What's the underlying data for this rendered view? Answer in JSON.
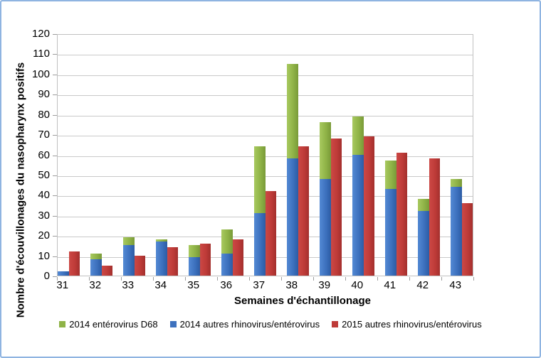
{
  "chart_data": {
    "type": "bar",
    "variant": "stacked-2014-plus-side-2015",
    "title": "",
    "xlabel": "Semaines d'échantillonage",
    "ylabel": "Nombre d'écouvillonages du nasopharynx positifs",
    "categories": [
      "31",
      "32",
      "33",
      "34",
      "35",
      "36",
      "37",
      "38",
      "39",
      "40",
      "41",
      "42",
      "43"
    ],
    "series": [
      {
        "name": "2014 entérovirus D68",
        "role": "stack-top",
        "color": "#8FB347",
        "gradient": [
          "#A8C95F",
          "#8FB347",
          "#799A38"
        ],
        "values": [
          0,
          3,
          4,
          1,
          6,
          12,
          33,
          47,
          28,
          19,
          14,
          6,
          4
        ]
      },
      {
        "name": "2014 autres rhinovirus/entérovirus",
        "role": "stack-bottom",
        "color": "#3D71BE",
        "gradient": [
          "#5389D4",
          "#3D71BE",
          "#2C5CA4"
        ],
        "values": [
          2,
          8,
          15,
          17,
          9,
          11,
          31,
          58,
          48,
          60,
          43,
          32,
          44
        ]
      },
      {
        "name": "2015 autres rhinovirus/entérovirus",
        "role": "side",
        "color": "#BE3B38",
        "gradient": [
          "#CC4845",
          "#BE3B38",
          "#A32F2D"
        ],
        "values": [
          12,
          5,
          10,
          14,
          16,
          18,
          42,
          64,
          68,
          69,
          61,
          58,
          36
        ]
      }
    ],
    "ylim": [
      0,
      120
    ],
    "ytick_step": 10,
    "ytick_labels": [
      "0",
      "10",
      "20",
      "30",
      "40",
      "50",
      "60",
      "70",
      "80",
      "90",
      "100",
      "110",
      "120"
    ],
    "grid": true,
    "legend_position": "bottom",
    "frame_border_color": "#8FB4E1",
    "gridline_color": "#C9C9C9"
  }
}
